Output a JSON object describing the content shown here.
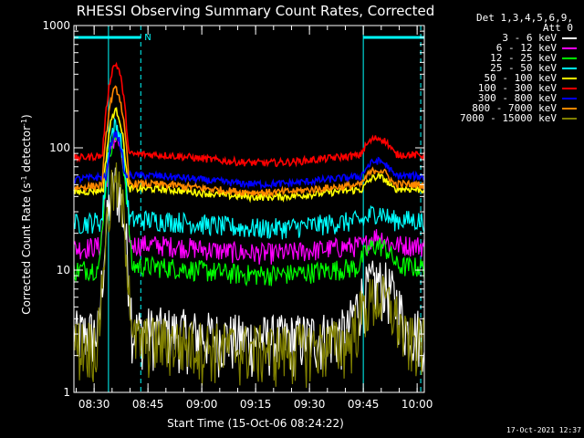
{
  "chart_data": {
    "type": "line",
    "title": "RHESSI Observing Summary Count Rates, Corrected",
    "xlabel": "Start Time (15-Oct-06 08:24:22)",
    "ylabel_parts": {
      "pre": "Corrected Count Rate (s",
      "sup1": "-1",
      "mid": " detector",
      "sup2": "-1",
      "post": ")"
    },
    "ylog": true,
    "ylim": [
      1,
      1000
    ],
    "y_tick_labels": [
      "1",
      "10",
      "100",
      "1000"
    ],
    "y_tick_values": [
      1,
      10,
      100,
      1000
    ],
    "x_start": "08:24:22",
    "x_end": "10:02:00",
    "x_tick_labels": [
      "08:30",
      "08:45",
      "09:00",
      "09:15",
      "09:30",
      "09:45",
      "10:00"
    ],
    "legend_title_lines": [
      "Det 1,3,4,5,6,9,",
      "Att 0"
    ],
    "night_marker": "N",
    "series": [
      {
        "name": "3 - 6 keV",
        "color": "#ffffff",
        "level": 3,
        "noise": "high"
      },
      {
        "name": "6 - 12 keV",
        "color": "#ff00ff",
        "level": 15,
        "noise": "mid"
      },
      {
        "name": "12 - 25 keV",
        "color": "#00ff00",
        "level": 10,
        "noise": "mid"
      },
      {
        "name": "25 - 50 keV",
        "color": "#00ffff",
        "level": 24,
        "noise": "mid"
      },
      {
        "name": "50 - 100 keV",
        "color": "#ffff00",
        "level": 43,
        "noise": "low"
      },
      {
        "name": "100 - 300 keV",
        "color": "#ff0000",
        "level": 82,
        "noise": "low"
      },
      {
        "name": "300 - 800 keV",
        "color": "#0000ff",
        "level": 55,
        "noise": "low"
      },
      {
        "name": "800 - 7000 keV",
        "color": "#ff8800",
        "level": 47,
        "noise": "low"
      },
      {
        "name": "7000 - 15000 keV",
        "color": "#808000",
        "level": 2.5,
        "noise": "high"
      }
    ],
    "event_times": [
      "08:34:00",
      "08:43:00",
      "09:45:00",
      "10:01:00"
    ],
    "peak_time": "08:36:00",
    "peak_values": [
      50,
      120,
      130,
      150,
      200,
      480,
      130,
      300,
      50
    ],
    "bump_time": "09:49:00",
    "bump_values": [
      8,
      19,
      16,
      30,
      58,
      120,
      78,
      66,
      6
    ]
  },
  "timestamp": "17-Oct-2021 12:37"
}
